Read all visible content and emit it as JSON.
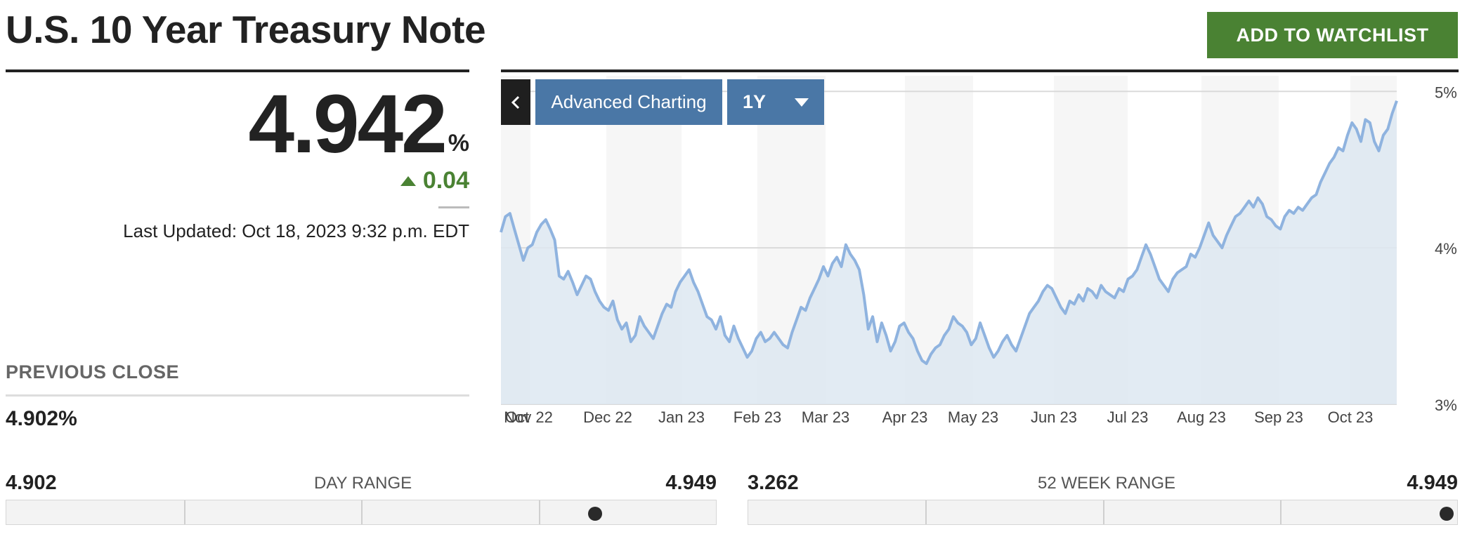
{
  "header": {
    "title": "U.S. 10 Year Treasury Note",
    "watchlist_label": "ADD TO WATCHLIST"
  },
  "quote": {
    "price": "4.942",
    "unit": "%",
    "change": "0.04",
    "change_color": "#4a8233",
    "last_updated": "Last Updated: Oct 18, 2023 9:32 p.m. EDT"
  },
  "previous_close": {
    "label": "PREVIOUS CLOSE",
    "value": "4.902%"
  },
  "day_range": {
    "label": "DAY RANGE",
    "low": "4.902",
    "high": "4.949",
    "marker_fraction": 0.83
  },
  "week52_range": {
    "label": "52 WEEK RANGE",
    "low": "3.262",
    "high": "4.949",
    "marker_fraction": 0.985
  },
  "chart_controls": {
    "back_icon": "chevron-left-icon",
    "advanced_label": "Advanced Charting",
    "range_label": "1Y",
    "range_icon": "caret-down-icon"
  },
  "colors": {
    "accent_green": "#4a8233",
    "control_blue": "#4a77a6",
    "series_line": "#8fb3df",
    "series_fill": "#dde7f1"
  },
  "chart_data": {
    "type": "area",
    "x_labels": [
      "Oct",
      "Nov 22",
      "Dec 22",
      "Jan 23",
      "Feb 23",
      "Mar 23",
      "Apr 23",
      "May 23",
      "Jun 23",
      "Jul 23",
      "Aug 23",
      "Sep 23",
      "Oct 23"
    ],
    "y_ticks": [
      "5%",
      "4%",
      "3%"
    ],
    "ylim": [
      3,
      5.1
    ],
    "grid": true,
    "series": [
      {
        "values": [
          4.1,
          4.2,
          4.22,
          4.12,
          4.02,
          3.92,
          4.0,
          4.02,
          4.1,
          4.15,
          4.18,
          4.12,
          4.05,
          3.82,
          3.8,
          3.85,
          3.78,
          3.7,
          3.76,
          3.82,
          3.8,
          3.72,
          3.66,
          3.62,
          3.6,
          3.66,
          3.54,
          3.48,
          3.52,
          3.4,
          3.44,
          3.56,
          3.5,
          3.46,
          3.42,
          3.5,
          3.58,
          3.64,
          3.62,
          3.72,
          3.78,
          3.82,
          3.86,
          3.78,
          3.72,
          3.64,
          3.56,
          3.54,
          3.48,
          3.56,
          3.44,
          3.4,
          3.5,
          3.42,
          3.36,
          3.3,
          3.34,
          3.42,
          3.46,
          3.4,
          3.42,
          3.46,
          3.42,
          3.38,
          3.36,
          3.46,
          3.54,
          3.62,
          3.6,
          3.68,
          3.74,
          3.8,
          3.88,
          3.82,
          3.9,
          3.94,
          3.88,
          4.02,
          3.96,
          3.92,
          3.86,
          3.7,
          3.48,
          3.56,
          3.4,
          3.52,
          3.44,
          3.34,
          3.4,
          3.5,
          3.52,
          3.46,
          3.42,
          3.34,
          3.28,
          3.26,
          3.32,
          3.36,
          3.38,
          3.44,
          3.48,
          3.56,
          3.52,
          3.5,
          3.46,
          3.38,
          3.42,
          3.52,
          3.44,
          3.36,
          3.3,
          3.34,
          3.4,
          3.44,
          3.38,
          3.34,
          3.42,
          3.5,
          3.58,
          3.62,
          3.66,
          3.72,
          3.76,
          3.74,
          3.68,
          3.62,
          3.58,
          3.66,
          3.64,
          3.7,
          3.66,
          3.74,
          3.72,
          3.68,
          3.76,
          3.72,
          3.7,
          3.68,
          3.74,
          3.72,
          3.8,
          3.82,
          3.86,
          3.94,
          4.02,
          3.96,
          3.88,
          3.8,
          3.76,
          3.72,
          3.8,
          3.84,
          3.86,
          3.88,
          3.96,
          3.94,
          4.0,
          4.08,
          4.16,
          4.08,
          4.04,
          4.0,
          4.08,
          4.14,
          4.2,
          4.22,
          4.26,
          4.3,
          4.26,
          4.32,
          4.28,
          4.2,
          4.18,
          4.14,
          4.12,
          4.2,
          4.24,
          4.22,
          4.26,
          4.24,
          4.28,
          4.32,
          4.34,
          4.42,
          4.48,
          4.54,
          4.58,
          4.64,
          4.62,
          4.72,
          4.8,
          4.76,
          4.68,
          4.82,
          4.8,
          4.68,
          4.62,
          4.72,
          4.76,
          4.86,
          4.94
        ]
      }
    ]
  }
}
